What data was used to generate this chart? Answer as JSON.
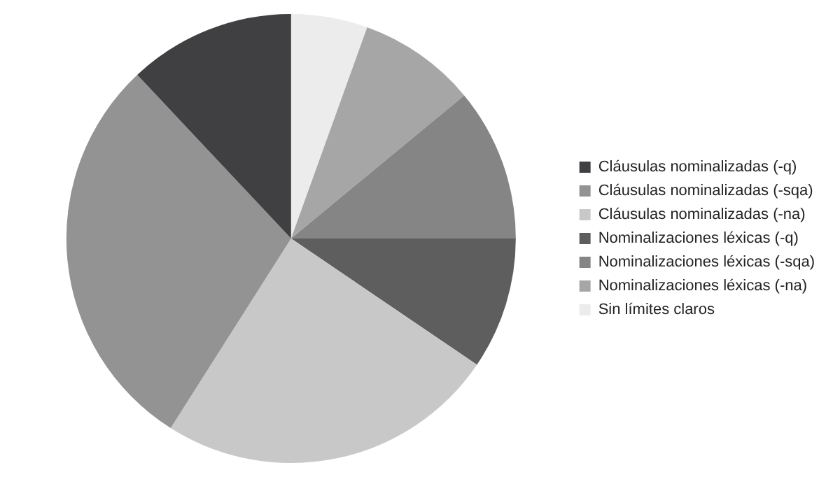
{
  "chart_data": {
    "type": "pie",
    "categories": [
      "Cláusulas nominalizadas (-q)",
      "Cláusulas nominalizadas (-sqa)",
      "Cláusulas nominalizadas (-na)",
      "Nominalizaciones léxicas (-q)",
      "Nominalizaciones léxicas (-sqa)",
      "Nominalizaciones léxicas (-na)",
      "Sin límites claros"
    ],
    "values": [
      12,
      29,
      24.5,
      9.5,
      11,
      8.5,
      5.5
    ],
    "colors": [
      "#404042",
      "#939393",
      "#c8c8c8",
      "#5e5e5e",
      "#858585",
      "#a6a6a6",
      "#ececec"
    ],
    "legend": "right"
  }
}
